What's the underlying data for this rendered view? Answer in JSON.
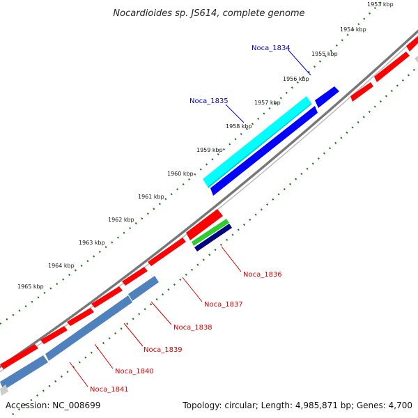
{
  "title": "Nocardioides sp. JS614, complete genome",
  "footer": {
    "accession": "Accession: NC_008699",
    "summary": "Topology: circular; Length: 4,985,871 bp; Genes: 4,700"
  },
  "colors": {
    "backbone": "#8a8a8a",
    "tick": "#1e7a1e",
    "forward_gene": "#ff0000",
    "reverse_gene": "#4f81bd",
    "highlight_cyan": "#00ffff",
    "highlight_blue": "#0000ff",
    "green_gene": "#2ecc2e",
    "navy_gene": "#000080",
    "label_blue": "#0000cc",
    "label_red": "#dd0000"
  },
  "scale_labels": [
    "1953 kbp",
    "1954 kbp",
    "1955 kbp",
    "1956 kbp",
    "1957 kbp",
    "1958 kbp",
    "1959 kbp",
    "1960 kbp",
    "1961 kbp",
    "1962 kbp",
    "1963 kbp",
    "1964 kbp",
    "1965 kbp"
  ],
  "gene_labels": {
    "noca_1834": "Noca_1834",
    "noca_1835": "Noca_1835",
    "noca_1836": "Noca_1836",
    "noca_1837": "Noca_1837",
    "noca_1838": "Noca_1838",
    "noca_1839": "Noca_1839",
    "noca_1840": "Noca_1840",
    "noca_1841": "Noca_1841"
  }
}
